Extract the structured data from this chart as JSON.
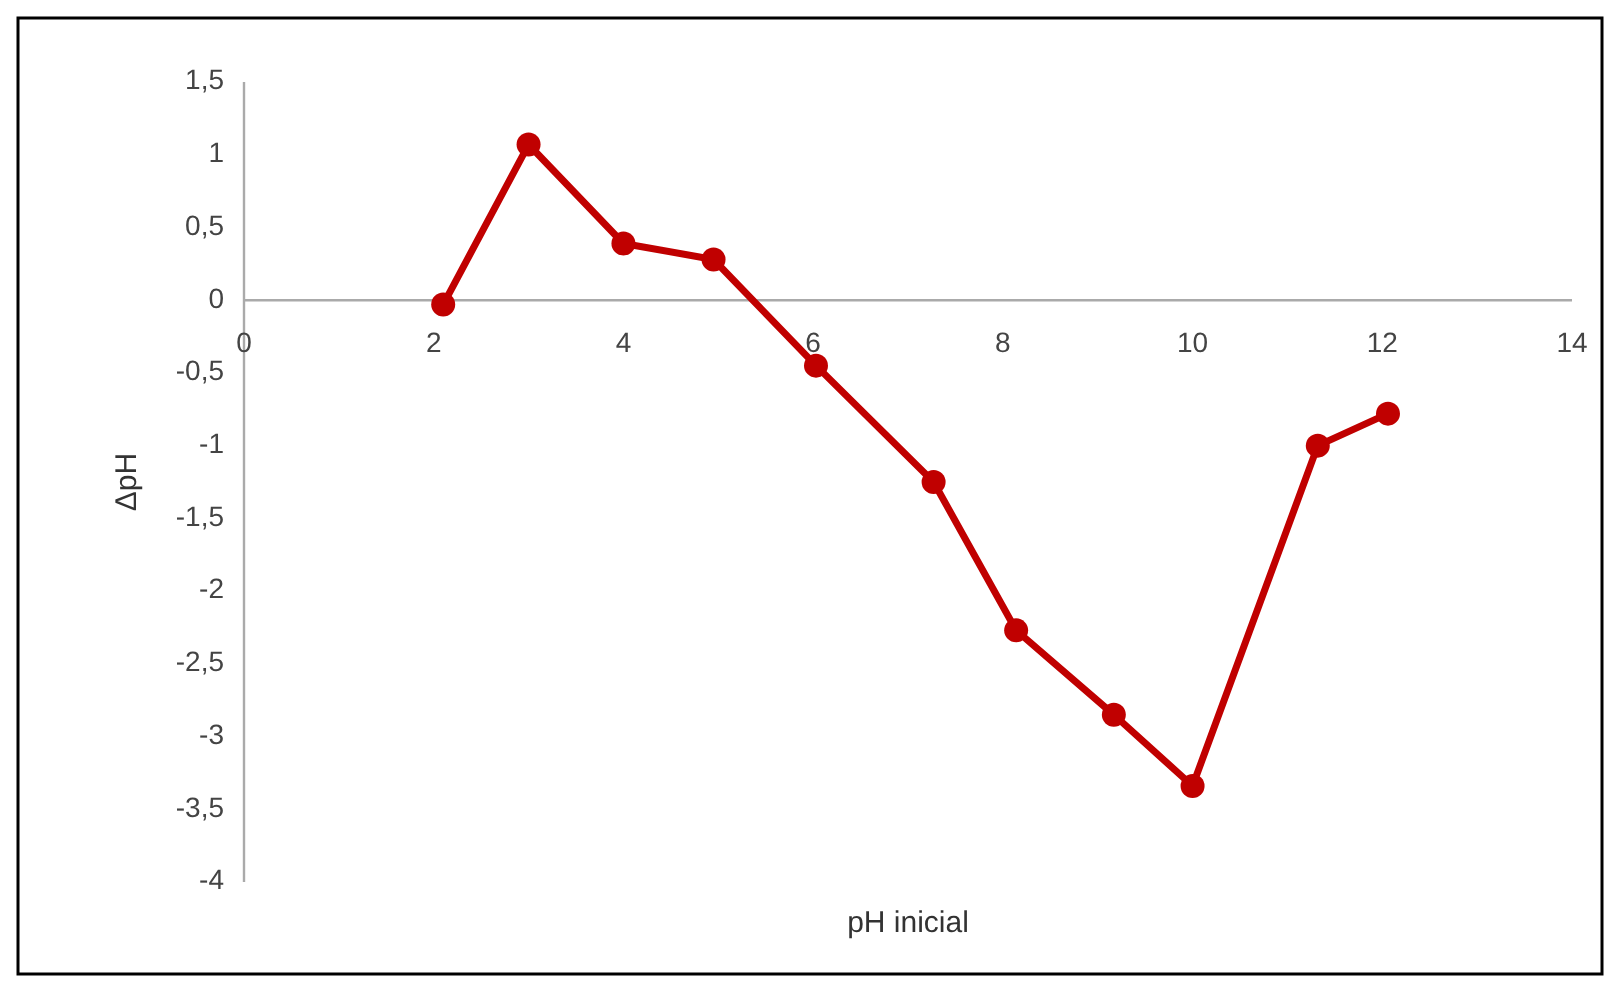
{
  "chart_data": {
    "type": "line",
    "xlabel": "pH inicial",
    "ylabel": "ΔpH",
    "x": [
      2.1,
      3.0,
      4.0,
      4.95,
      6.03,
      7.27,
      8.14,
      9.17,
      10.0,
      11.32,
      12.06
    ],
    "series": [
      {
        "color": "#c00000",
        "values": [
          -0.03,
          1.07,
          0.39,
          0.28,
          -0.45,
          -1.25,
          -2.27,
          -2.85,
          -3.34,
          -1.0,
          -0.78
        ]
      }
    ],
    "xlim": [
      0,
      14
    ],
    "xticks": [
      0,
      2,
      4,
      6,
      8,
      10,
      12,
      14
    ],
    "ylim": [
      -4,
      1.5
    ],
    "yticks": [
      {
        "value": 1.5,
        "label": "1,5"
      },
      1,
      {
        "value": 0.5,
        "label": "0,5"
      },
      0,
      {
        "value": -0.5,
        "label": "-0,5"
      },
      -1,
      {
        "value": -1.5,
        "label": "-1,5"
      },
      -2,
      {
        "value": -2.5,
        "label": "-2,5"
      },
      -3,
      {
        "value": -3.5,
        "label": "-3,5"
      },
      -4
    ],
    "marker": "circle",
    "line_style": "solid"
  }
}
